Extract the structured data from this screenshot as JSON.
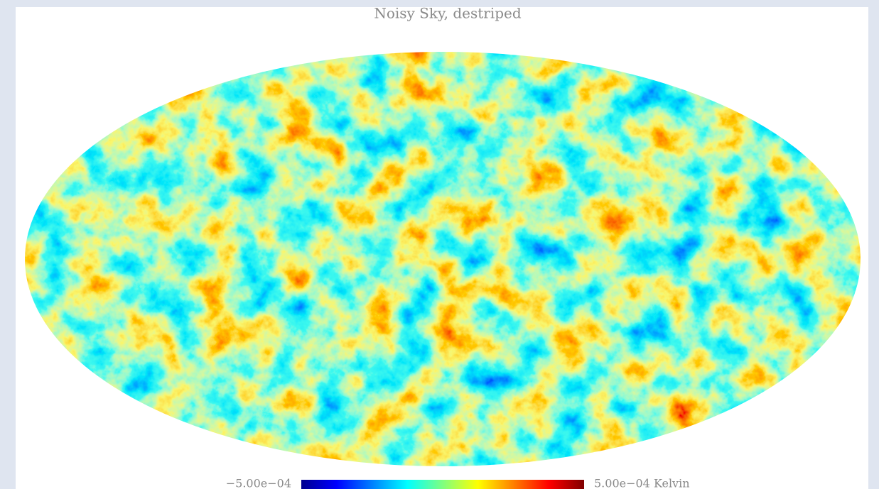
{
  "title": "Noisy Sky, destriped",
  "colorbar": {
    "min_label": "−5.00e−04",
    "max_label": "5.00e−04 Kelvin"
  }
}
